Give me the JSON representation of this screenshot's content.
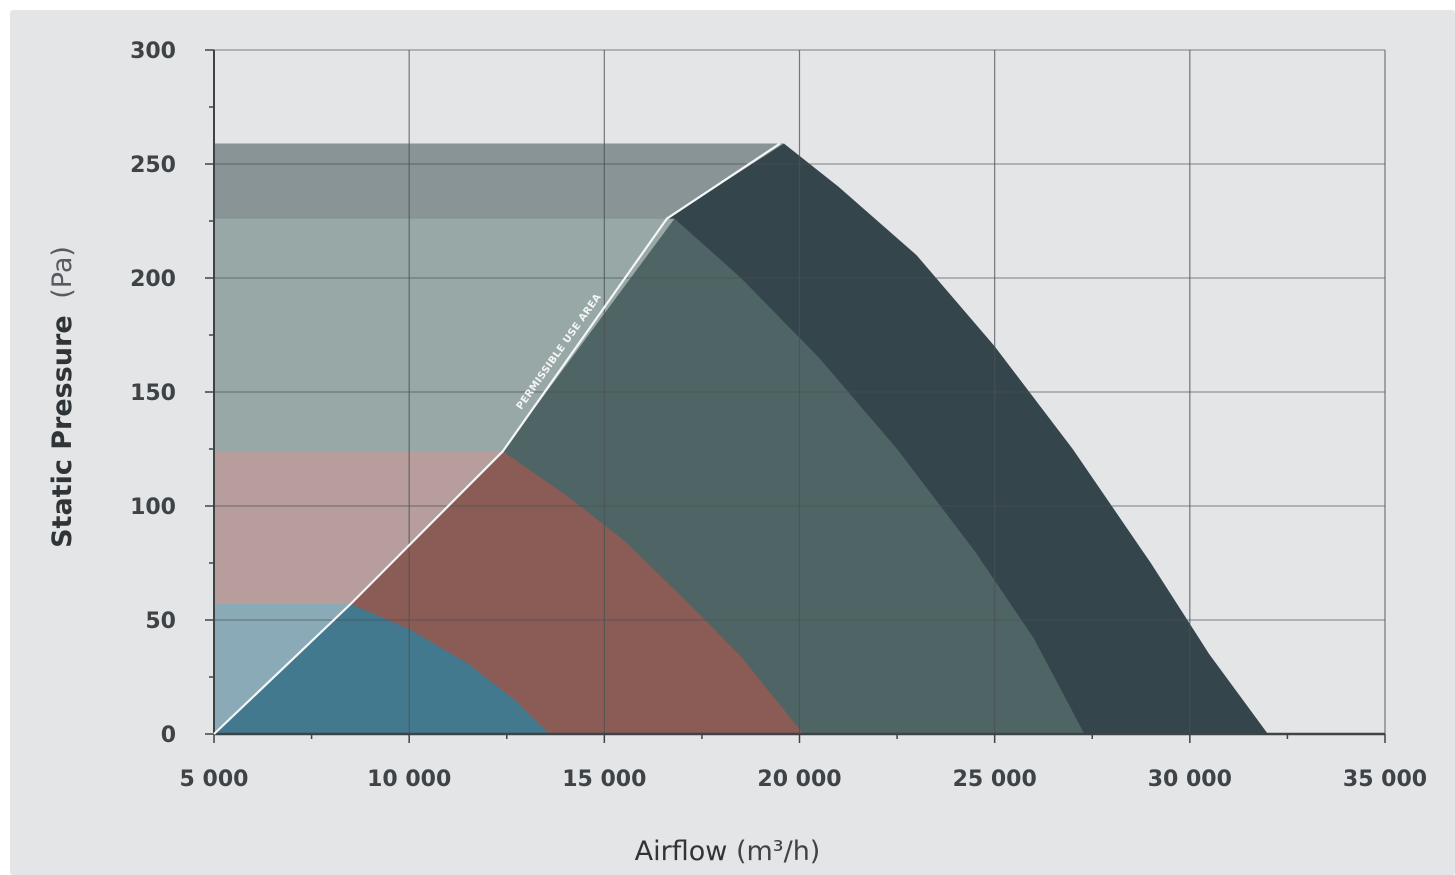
{
  "chart_data": {
    "type": "area",
    "xlabel": "Airflow",
    "xlabel_unit": "(m³/h)",
    "ylabel": "Static Pressure",
    "ylabel_unit": "(Pa)",
    "xlim": [
      5000,
      35000
    ],
    "ylim": [
      0,
      300
    ],
    "x_ticks": [
      5000,
      10000,
      15000,
      20000,
      25000,
      30000,
      35000
    ],
    "x_tick_labels": [
      "5 000",
      "10 000",
      "15 000",
      "20 000",
      "25 000",
      "30 000",
      "35 000"
    ],
    "y_ticks": [
      0,
      50,
      100,
      150,
      200,
      250,
      300
    ],
    "y_tick_labels": [
      "0",
      "50",
      "100",
      "150",
      "200",
      "250",
      "300"
    ],
    "grid": true,
    "annotation": "PERMISSIBLE USE AREA",
    "limit_line": [
      [
        5000,
        0
      ],
      [
        8500,
        57
      ],
      [
        12400,
        124
      ],
      [
        16600,
        226
      ],
      [
        19500,
        259
      ]
    ],
    "curves": [
      {
        "color": "#42798f",
        "light_color": "#8aaab8",
        "points": [
          [
            8500,
            57
          ],
          [
            10000,
            46
          ],
          [
            11500,
            31
          ],
          [
            12700,
            15
          ],
          [
            13600,
            0
          ]
        ]
      },
      {
        "color": "#8b5b55",
        "light_color": "#b79d9b",
        "points": [
          [
            12400,
            124
          ],
          [
            14000,
            105
          ],
          [
            15500,
            85
          ],
          [
            17000,
            60
          ],
          [
            18500,
            34
          ],
          [
            20100,
            0
          ]
        ]
      },
      {
        "color": "#4f6565",
        "light_color": "#98a8a6",
        "points": [
          [
            16800,
            226
          ],
          [
            18500,
            200
          ],
          [
            20500,
            165
          ],
          [
            22500,
            125
          ],
          [
            24500,
            80
          ],
          [
            26000,
            42
          ],
          [
            27300,
            0
          ]
        ]
      },
      {
        "color": "#35454c",
        "light_color": "#899496",
        "points": [
          [
            19600,
            259
          ],
          [
            21000,
            240
          ],
          [
            23000,
            210
          ],
          [
            25000,
            170
          ],
          [
            27000,
            125
          ],
          [
            29000,
            75
          ],
          [
            30500,
            35
          ],
          [
            32000,
            0
          ]
        ]
      }
    ]
  }
}
